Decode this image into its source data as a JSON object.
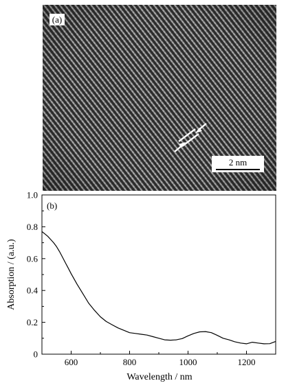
{
  "panel_a": {
    "label": "(a)",
    "scale_bar_label": "2 nm"
  },
  "panel_b": {
    "label": "(b)"
  },
  "chart_data": {
    "type": "line",
    "title": "",
    "xlabel": "Wavelength / nm",
    "ylabel": "Absorption / (a.u.)",
    "xlim": [
      500,
      1300
    ],
    "ylim": [
      0,
      1.0
    ],
    "xticks": [
      600,
      800,
      1000,
      1200
    ],
    "yticks": [
      0,
      0.2,
      0.4,
      0.6,
      0.8,
      1.0
    ],
    "ytick_labels": [
      "0",
      "0.2",
      "0.4",
      "0.6",
      "0.8",
      "1.0"
    ],
    "grid": false,
    "series": [
      {
        "x": [
          500,
          510,
          520,
          530,
          540,
          550,
          560,
          570,
          580,
          590,
          600,
          620,
          640,
          660,
          680,
          700,
          720,
          740,
          760,
          780,
          800,
          820,
          840,
          860,
          880,
          900,
          920,
          940,
          960,
          980,
          1000,
          1020,
          1040,
          1060,
          1080,
          1100,
          1120,
          1140,
          1160,
          1180,
          1200,
          1220,
          1240,
          1260,
          1280,
          1300
        ],
        "y": [
          0.77,
          0.755,
          0.74,
          0.72,
          0.7,
          0.675,
          0.645,
          0.61,
          0.575,
          0.54,
          0.505,
          0.44,
          0.38,
          0.32,
          0.275,
          0.235,
          0.205,
          0.185,
          0.165,
          0.15,
          0.135,
          0.13,
          0.125,
          0.12,
          0.11,
          0.1,
          0.09,
          0.088,
          0.09,
          0.098,
          0.115,
          0.13,
          0.14,
          0.142,
          0.135,
          0.118,
          0.1,
          0.09,
          0.078,
          0.07,
          0.065,
          0.075,
          0.07,
          0.065,
          0.066,
          0.08
        ]
      }
    ]
  }
}
